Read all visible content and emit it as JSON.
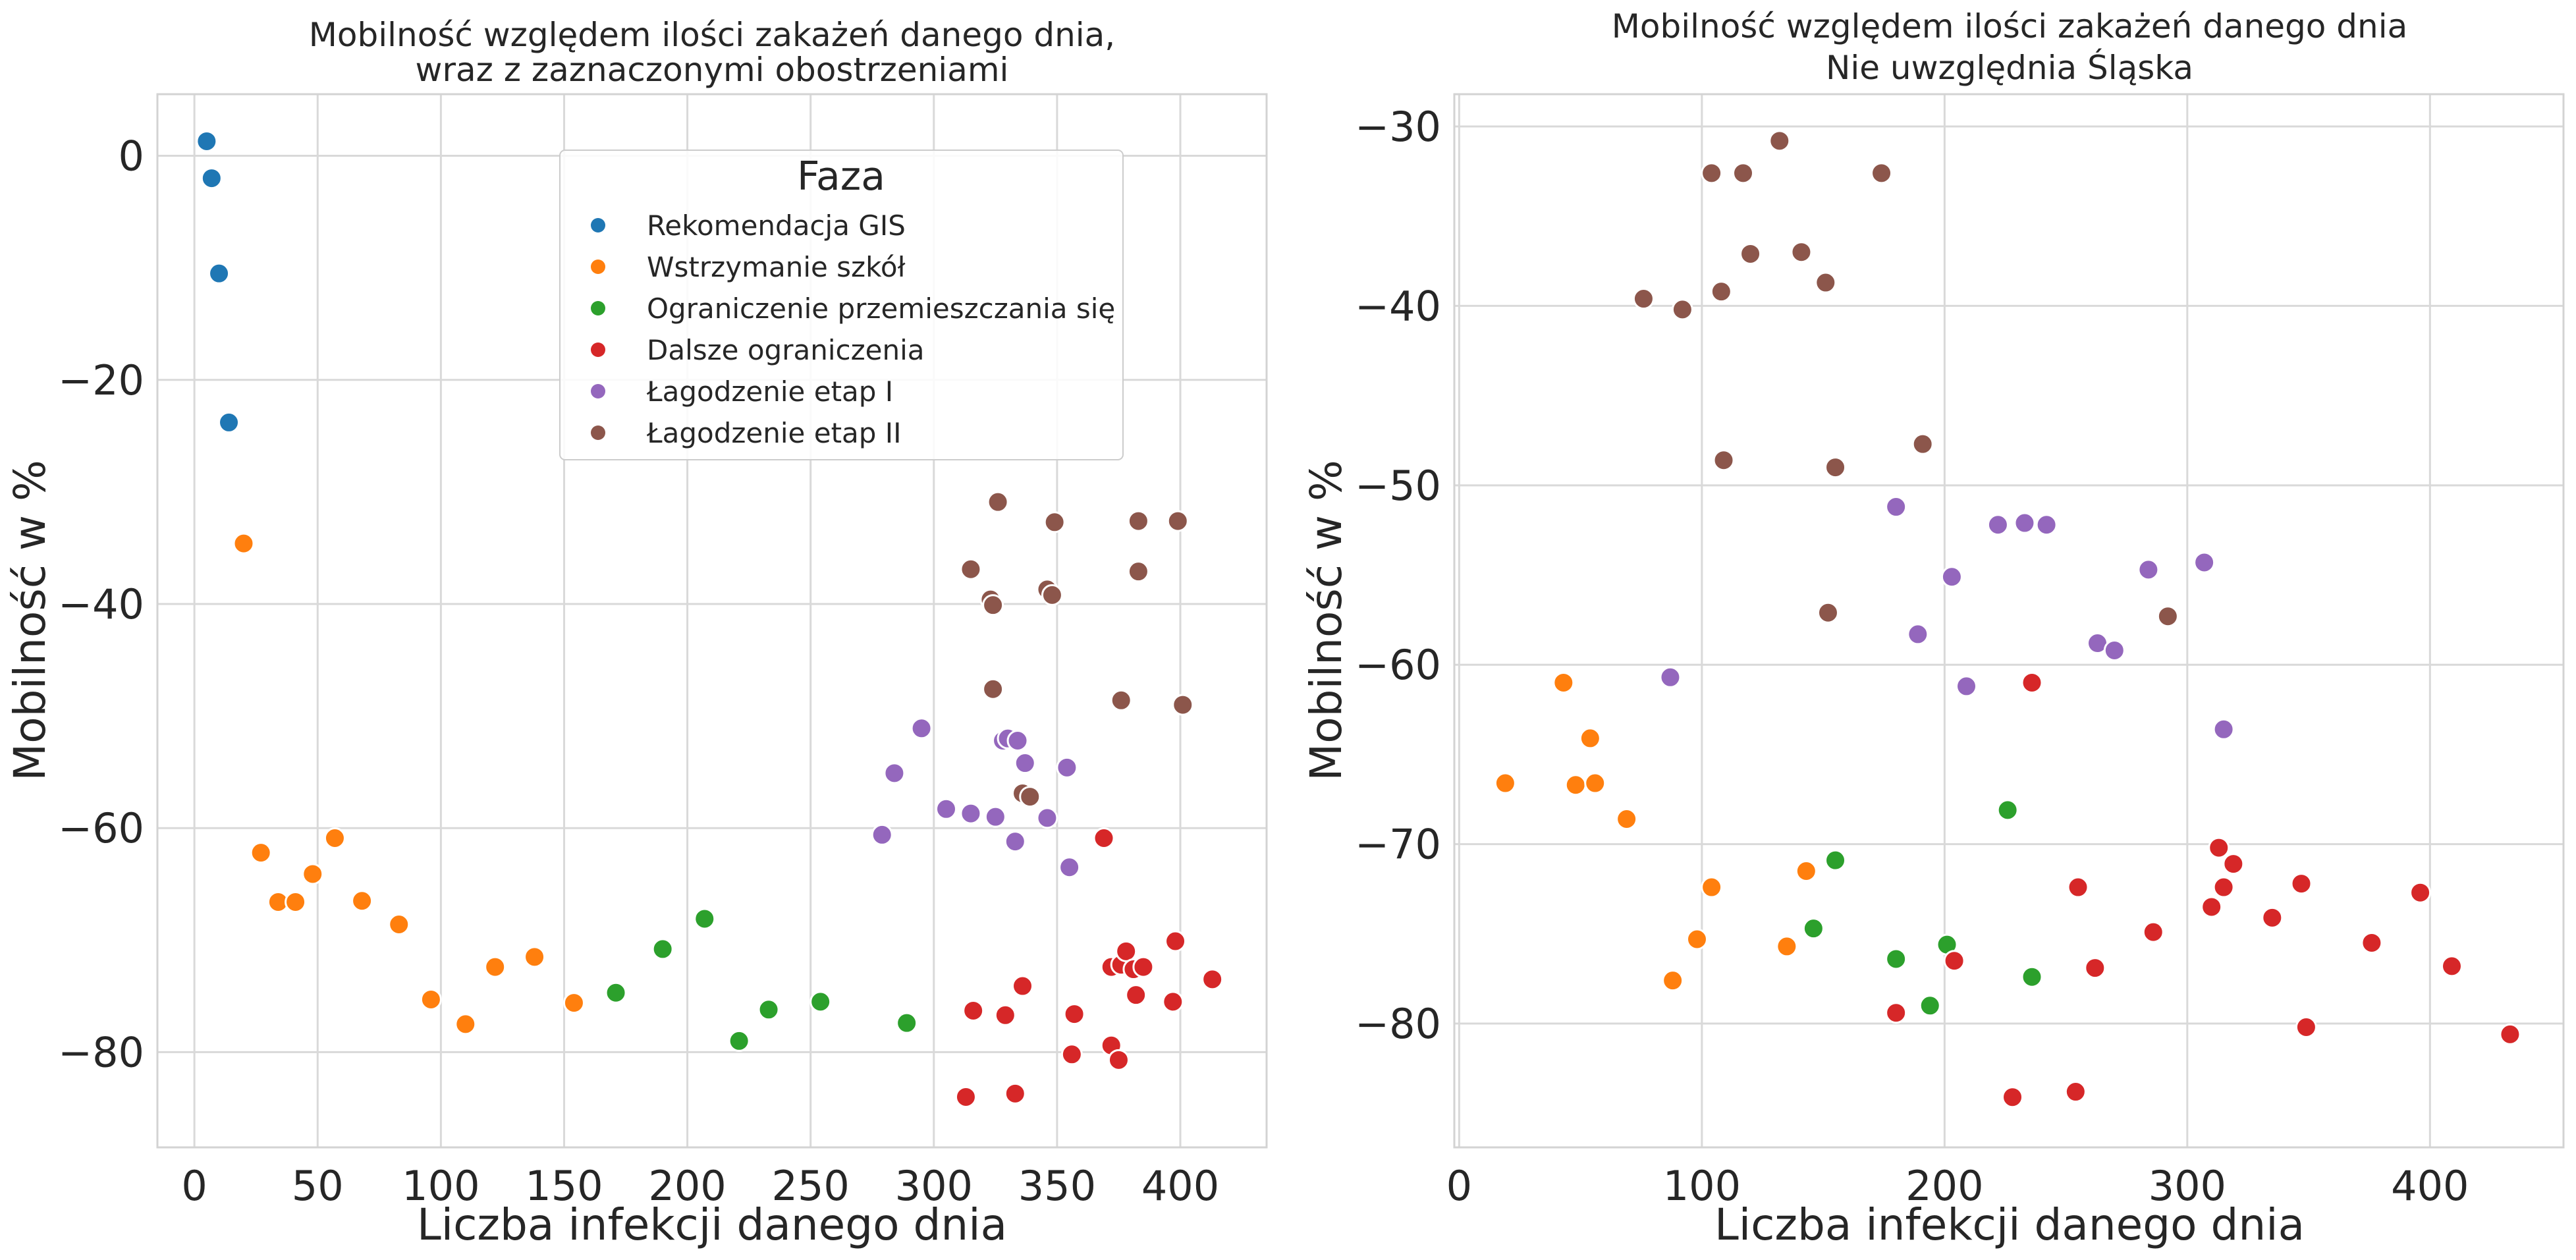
{
  "figure": {
    "charts": [
      {
        "id": "left",
        "title_lines": [
          "Mobilność względem ilości zakażeń danego dnia,",
          "wraz z zaznaczonymi obostrzeniami"
        ]
      },
      {
        "id": "right",
        "title_lines": [
          "Mobilność względem ilości zakażeń danego dnia",
          "Nie uwzględnia Śląska"
        ]
      }
    ]
  },
  "chart_data": [
    {
      "type": "scatter",
      "title": "Mobilność względem ilości zakażeń danego dnia,\nwraz z zaznaczonymi obostrzeniami",
      "xlabel": "Liczba infekcji danego dnia",
      "ylabel": "Mobilność w %",
      "xlim": [
        -15,
        435
      ],
      "ylim": [
        -88.5,
        5.5
      ],
      "xticks": [
        0,
        50,
        100,
        150,
        200,
        250,
        300,
        350,
        400
      ],
      "yticks": [
        0,
        -20,
        -40,
        -60,
        -80
      ],
      "xtick_labels": [
        "0",
        "50",
        "100",
        "150",
        "200",
        "250",
        "300",
        "350",
        "400"
      ],
      "ytick_labels": [
        "0",
        "−20",
        "−40",
        "−60",
        "−80"
      ],
      "grid": true,
      "legend": {
        "title": "Faza",
        "placement": "top-center",
        "entries": [
          "Rekomendacja GIS",
          "Wstrzymanie szkół",
          "Ograniczenie przemieszczania się",
          "Dalsze ograniczenia",
          "Łagodzenie etap I",
          "Łagodzenie etap II"
        ]
      },
      "series": [
        {
          "name": "Rekomendacja GIS",
          "color": "#1f77b4",
          "points": [
            [
              5,
              1.3
            ],
            [
              7,
              -2
            ],
            [
              10,
              -10.5
            ],
            [
              14,
              -23.8
            ]
          ]
        },
        {
          "name": "Wstrzymanie szkół",
          "color": "#ff7f0e",
          "points": [
            [
              20,
              -34.6
            ],
            [
              27,
              -62.2
            ],
            [
              34,
              -66.6
            ],
            [
              41,
              -66.6
            ],
            [
              48,
              -64.1
            ],
            [
              57,
              -60.9
            ],
            [
              68,
              -66.5
            ],
            [
              83,
              -68.6
            ],
            [
              96,
              -75.3
            ],
            [
              110,
              -77.5
            ],
            [
              122,
              -72.4
            ],
            [
              138,
              -71.5
            ],
            [
              154,
              -75.6
            ]
          ]
        },
        {
          "name": "Ograniczenie przemieszczania się",
          "color": "#2ca02c",
          "points": [
            [
              171,
              -74.7
            ],
            [
              190,
              -70.8
            ],
            [
              207,
              -68.1
            ],
            [
              221,
              -79
            ],
            [
              233,
              -76.2
            ],
            [
              254,
              -75.5
            ],
            [
              289,
              -77.4
            ]
          ]
        },
        {
          "name": "Dalsze ograniczenia",
          "color": "#d62728",
          "points": [
            [
              313,
              -84
            ],
            [
              316,
              -76.3
            ],
            [
              329,
              -76.7
            ],
            [
              333,
              -83.7
            ],
            [
              336,
              -74.1
            ],
            [
              356,
              -80.2
            ],
            [
              357,
              -76.6
            ],
            [
              369,
              -60.9
            ],
            [
              372,
              -72.4
            ],
            [
              372,
              -79.4
            ],
            [
              375,
              -80.7
            ],
            [
              376,
              -72.2
            ],
            [
              378,
              -71
            ],
            [
              381,
              -72.6
            ],
            [
              382,
              -74.9
            ],
            [
              385,
              -72.4
            ],
            [
              397,
              -75.5
            ],
            [
              398,
              -70.1
            ],
            [
              413,
              -73.5
            ]
          ]
        },
        {
          "name": "Łagodzenie etap I",
          "color": "#9467bd",
          "points": [
            [
              279,
              -60.6
            ],
            [
              284,
              -55.1
            ],
            [
              295,
              -51.1
            ],
            [
              305,
              -58.3
            ],
            [
              315,
              -58.7
            ],
            [
              325,
              -59
            ],
            [
              328,
              -52.2
            ],
            [
              330,
              -52
            ],
            [
              333,
              -61.2
            ],
            [
              334,
              -52.2
            ],
            [
              337,
              -54.2
            ],
            [
              346,
              -59.1
            ],
            [
              354,
              -54.6
            ],
            [
              355,
              -63.5
            ]
          ]
        },
        {
          "name": "Łagodzenie etap II",
          "color": "#8c564b",
          "points": [
            [
              315,
              -36.9
            ],
            [
              323,
              -39.6
            ],
            [
              324,
              -40.1
            ],
            [
              324,
              -47.6
            ],
            [
              326,
              -30.9
            ],
            [
              336,
              -56.9
            ],
            [
              339,
              -57.2
            ],
            [
              346,
              -38.7
            ],
            [
              348,
              -39.2
            ],
            [
              349,
              -32.7
            ],
            [
              376,
              -48.6
            ],
            [
              383,
              -32.6
            ],
            [
              383,
              -37.1
            ],
            [
              399,
              -32.6
            ],
            [
              401,
              -49
            ]
          ]
        }
      ]
    },
    {
      "type": "scatter",
      "title": "Mobilność względem ilości zakażeń danego dnia\nNie uwzględnia Śląska",
      "xlabel": "Liczba infekcji danego dnia",
      "ylabel": "Mobilność w %",
      "xlim": [
        -2,
        455
      ],
      "ylim": [
        -86.9,
        -28.2
      ],
      "xticks": [
        0,
        100,
        200,
        300,
        400
      ],
      "yticks": [
        -30,
        -40,
        -50,
        -60,
        -70,
        -80
      ],
      "xtick_labels": [
        "0",
        "100",
        "200",
        "300",
        "400"
      ],
      "ytick_labels": [
        "−30",
        "−40",
        "−50",
        "−60",
        "−70",
        "−80"
      ],
      "grid": true,
      "legend": null,
      "series": [
        {
          "name": "Wstrzymanie szkół",
          "color": "#ff7f0e",
          "points": [
            [
              19,
              -66.6
            ],
            [
              43,
              -61
            ],
            [
              48,
              -66.7
            ],
            [
              54,
              -64.1
            ],
            [
              56,
              -66.6
            ],
            [
              69,
              -68.6
            ],
            [
              88,
              -77.6
            ],
            [
              98,
              -75.3
            ],
            [
              104,
              -72.4
            ],
            [
              135,
              -75.7
            ],
            [
              143,
              -71.5
            ]
          ]
        },
        {
          "name": "Ograniczenie przemieszczania się",
          "color": "#2ca02c",
          "points": [
            [
              146,
              -74.7
            ],
            [
              155,
              -70.9
            ],
            [
              180,
              -76.4
            ],
            [
              194,
              -79
            ],
            [
              201,
              -75.6
            ],
            [
              226,
              -68.1
            ],
            [
              236,
              -77.4
            ]
          ]
        },
        {
          "name": "Dalsze ograniczenia",
          "color": "#d62728",
          "points": [
            [
              180,
              -79.4
            ],
            [
              204,
              -76.5
            ],
            [
              228,
              -84.1
            ],
            [
              236,
              -61
            ],
            [
              254,
              -83.8
            ],
            [
              255,
              -72.4
            ],
            [
              262,
              -76.9
            ],
            [
              286,
              -74.9
            ],
            [
              310,
              -73.5
            ],
            [
              313,
              -70.2
            ],
            [
              315,
              -72.4
            ],
            [
              319,
              -71.1
            ],
            [
              335,
              -74.1
            ],
            [
              347,
              -72.2
            ],
            [
              349,
              -80.2
            ],
            [
              376,
              -75.5
            ],
            [
              396,
              -72.7
            ],
            [
              409,
              -76.8
            ],
            [
              433,
              -80.6
            ]
          ]
        },
        {
          "name": "Łagodzenie etap I",
          "color": "#9467bd",
          "points": [
            [
              87,
              -60.7
            ],
            [
              180,
              -51.2
            ],
            [
              189,
              -58.3
            ],
            [
              203,
              -55.1
            ],
            [
              209,
              -61.2
            ],
            [
              222,
              -52.2
            ],
            [
              233,
              -52.1
            ],
            [
              242,
              -52.2
            ],
            [
              263,
              -58.8
            ],
            [
              270,
              -59.2
            ],
            [
              284,
              -54.7
            ],
            [
              307,
              -54.3
            ],
            [
              315,
              -63.6
            ]
          ]
        },
        {
          "name": "Łagodzenie etap II",
          "color": "#8c564b",
          "points": [
            [
              76,
              -39.6
            ],
            [
              92,
              -40.2
            ],
            [
              104,
              -32.6
            ],
            [
              108,
              -39.2
            ],
            [
              109,
              -48.6
            ],
            [
              117,
              -32.6
            ],
            [
              120,
              -37.1
            ],
            [
              132,
              -30.8
            ],
            [
              141,
              -37
            ],
            [
              151,
              -38.7
            ],
            [
              152,
              -57.1
            ],
            [
              155,
              -49
            ],
            [
              174,
              -32.6
            ],
            [
              191,
              -47.7
            ],
            [
              292,
              -57.3
            ]
          ]
        }
      ]
    }
  ]
}
